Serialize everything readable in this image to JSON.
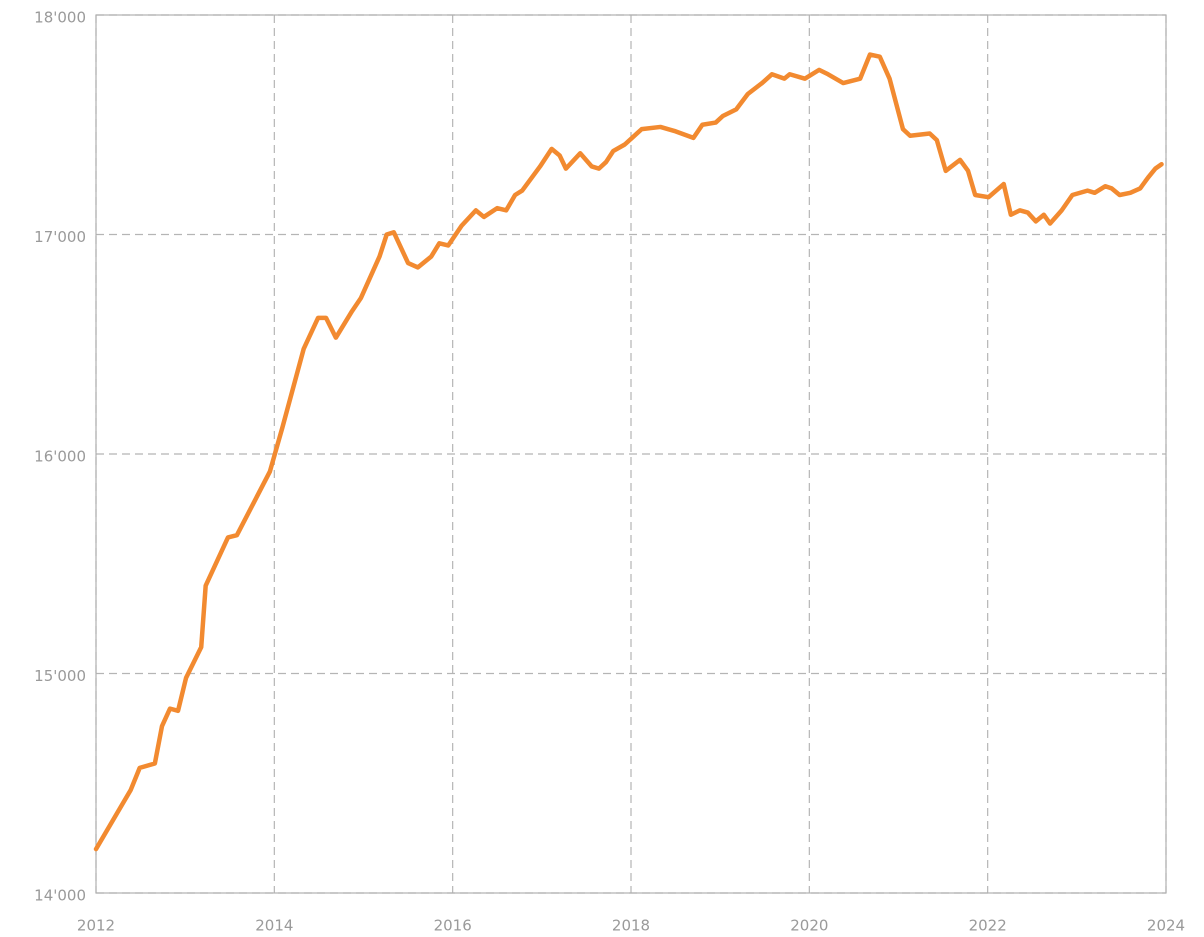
{
  "chart_data": {
    "type": "line",
    "x": [
      2012.0,
      2012.39,
      2012.49,
      2012.66,
      2012.74,
      2012.83,
      2012.92,
      2013.01,
      2013.18,
      2013.23,
      2013.48,
      2013.58,
      2013.95,
      2014.09,
      2014.33,
      2014.49,
      2014.58,
      2014.69,
      2014.87,
      2014.97,
      2015.18,
      2015.26,
      2015.34,
      2015.5,
      2015.61,
      2015.76,
      2015.85,
      2015.95,
      2016.1,
      2016.26,
      2016.35,
      2016.5,
      2016.6,
      2016.7,
      2016.78,
      2016.98,
      2017.11,
      2017.2,
      2017.27,
      2017.43,
      2017.56,
      2017.64,
      2017.72,
      2017.8,
      2017.93,
      2018.12,
      2018.33,
      2018.5,
      2018.7,
      2018.8,
      2018.95,
      2019.03,
      2019.18,
      2019.31,
      2019.47,
      2019.58,
      2019.72,
      2019.78,
      2019.95,
      2020.11,
      2020.21,
      2020.38,
      2020.57,
      2020.68,
      2020.79,
      2020.9,
      2021.05,
      2021.13,
      2021.35,
      2021.43,
      2021.53,
      2021.69,
      2021.78,
      2021.86,
      2022.01,
      2022.18,
      2022.26,
      2022.36,
      2022.45,
      2022.54,
      2022.63,
      2022.7,
      2022.83,
      2022.95,
      2023.12,
      2023.2,
      2023.32,
      2023.39,
      2023.48,
      2023.6,
      2023.71,
      2023.8,
      2023.88,
      2023.95
    ],
    "series": [
      {
        "color": "#f28a30",
        "values": [
          14200,
          14470,
          14570,
          14590,
          14760,
          14840,
          14830,
          14980,
          15120,
          15400,
          15620,
          15630,
          15920,
          16120,
          16480,
          16620,
          16620,
          16530,
          16650,
          16710,
          16900,
          17000,
          17010,
          16870,
          16850,
          16900,
          16960,
          16950,
          17040,
          17110,
          17080,
          17120,
          17110,
          17180,
          17200,
          17310,
          17390,
          17360,
          17300,
          17370,
          17310,
          17300,
          17330,
          17380,
          17410,
          17480,
          17490,
          17470,
          17440,
          17500,
          17510,
          17540,
          17570,
          17640,
          17690,
          17730,
          17710,
          17730,
          17710,
          17750,
          17730,
          17690,
          17710,
          17820,
          17810,
          17710,
          17480,
          17450,
          17460,
          17430,
          17290,
          17340,
          17290,
          17180,
          17170,
          17230,
          17090,
          17110,
          17100,
          17060,
          17090,
          17050,
          17110,
          17180,
          17200,
          17190,
          17220,
          17210,
          17180,
          17190,
          17210,
          17260,
          17300,
          17320
        ]
      }
    ],
    "xlim": [
      2012,
      2024
    ],
    "xticks": [
      2012,
      2014,
      2016,
      2018,
      2020,
      2022,
      2024
    ],
    "ylim": [
      14000,
      18000
    ],
    "yticks": [
      {
        "value": 14000,
        "label": "14'000"
      },
      {
        "value": 15000,
        "label": "15'000"
      },
      {
        "value": 16000,
        "label": "16'000"
      },
      {
        "value": 17000,
        "label": "17'000"
      },
      {
        "value": 18000,
        "label": "18'000"
      }
    ],
    "grid": true
  }
}
